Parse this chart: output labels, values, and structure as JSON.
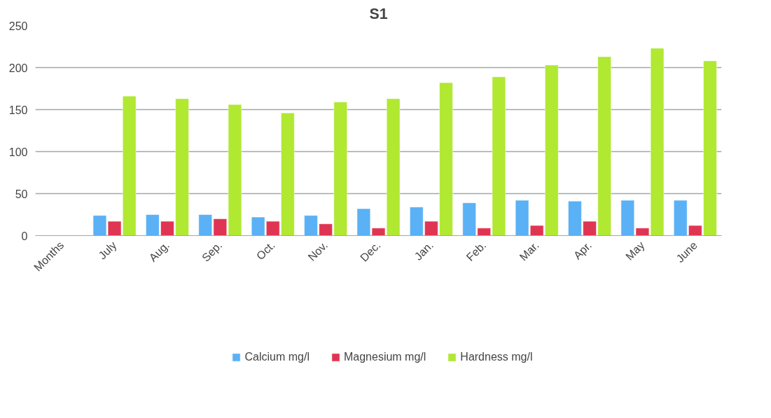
{
  "chart_data": {
    "type": "bar",
    "title": "S1",
    "categories": [
      "Months",
      "July",
      "Aug.",
      "Sep.",
      "Oct.",
      "Nov.",
      "Dec.",
      "Jan.",
      "Feb.",
      "Mar.",
      "Apr.",
      "May",
      "June"
    ],
    "series": [
      {
        "name": "Calcium mg/l",
        "color": "#5ab1f5",
        "values": [
          null,
          24,
          25,
          25,
          22,
          24,
          32,
          34,
          39,
          42,
          41,
          42,
          42
        ]
      },
      {
        "name": "Magnesium mg/l",
        "color": "#e03552",
        "values": [
          null,
          17,
          17,
          20,
          17,
          14,
          9,
          17,
          9,
          12,
          17,
          9,
          12
        ]
      },
      {
        "name": "Hardness mg/l",
        "color": "#b0e832",
        "values": [
          null,
          166,
          163,
          156,
          146,
          159,
          163,
          182,
          189,
          203,
          213,
          223,
          208
        ]
      }
    ],
    "ylim": [
      0,
      250
    ],
    "yticks": [
      0,
      50,
      100,
      150,
      200,
      250
    ],
    "grid": "y",
    "legend": "bottom"
  }
}
